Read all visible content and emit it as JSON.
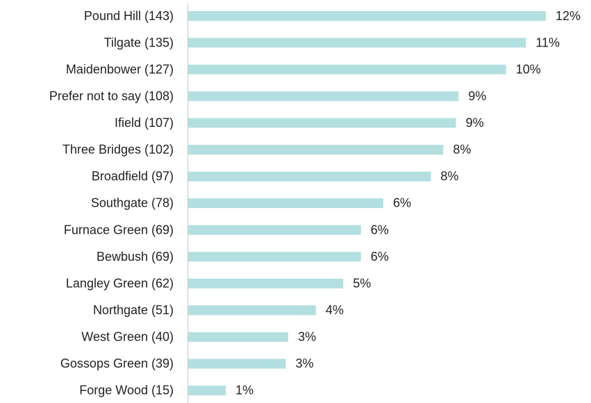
{
  "chart_data": {
    "type": "bar",
    "orientation": "horizontal",
    "color": "#b4dfe0",
    "categories": [
      "Pound Hill (143)",
      "Tilgate (135)",
      "Maidenbower (127)",
      "Prefer not to say (108)",
      "Ifield (107)",
      "Three Bridges (102)",
      "Broadfield (97)",
      "Southgate (78)",
      "Furnace Green (69)",
      "Bewbush (69)",
      "Langley Green (62)",
      "Northgate (51)",
      "West Green (40)",
      "Gossops Green (39)",
      "Forge Wood (15)"
    ],
    "values": [
      11.51,
      10.87,
      10.23,
      8.7,
      8.62,
      8.21,
      7.81,
      6.28,
      5.56,
      5.56,
      4.99,
      4.11,
      3.22,
      3.14,
      1.21
    ],
    "value_labels": [
      "12%",
      "11%",
      "10%",
      "9%",
      "9%",
      "8%",
      "8%",
      "6%",
      "6%",
      "6%",
      "5%",
      "4%",
      "3%",
      "3%",
      "1%"
    ]
  }
}
